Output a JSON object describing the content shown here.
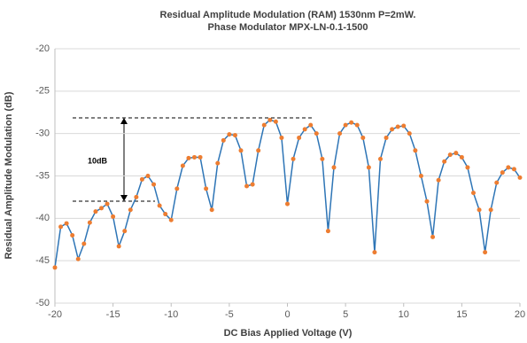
{
  "chart_data": {
    "type": "line",
    "title": "Residual Amplitude Modulation (RAM) 1530nm P=2mW.",
    "subtitle": "Phase Modulator MPX-LN-0.1-1500",
    "x_label": "DC Bias Applied Voltage (V)",
    "y_label": "Residual Amplitude Modulation (dB)",
    "annotation": "10dB",
    "x": [
      -20,
      -19.5,
      -19,
      -18.5,
      -18,
      -17.5,
      -17,
      -16.5,
      -16,
      -15.5,
      -15,
      -14.5,
      -14,
      -13.5,
      -13,
      -12.5,
      -12,
      -11.5,
      -11,
      -10.5,
      -10,
      -9.5,
      -9,
      -8.5,
      -8,
      -7.5,
      -7,
      -6.5,
      -6,
      -5.5,
      -5,
      -4.5,
      -4,
      -3.5,
      -3,
      -2.5,
      -2,
      -1.5,
      -1,
      -0.5,
      0,
      0.5,
      1,
      1.5,
      2,
      2.5,
      3,
      3.5,
      4,
      4.5,
      5,
      5.5,
      6,
      6.5,
      7,
      7.5,
      8,
      8.5,
      9,
      9.5,
      10,
      10.5,
      11,
      11.5,
      12,
      12.5,
      13,
      13.5,
      14,
      14.5,
      15,
      15.5,
      16,
      16.5,
      17,
      17.5,
      18,
      18.5,
      19,
      19.5,
      20
    ],
    "series": [
      {
        "name": "RAM",
        "color": "#2e75b6",
        "marker_color": "#ed7d31",
        "values": [
          -45.8,
          -41,
          -40.6,
          -42,
          -44.8,
          -43,
          -40.5,
          -39.2,
          -38.8,
          -38.3,
          -39.8,
          -43.3,
          -41.5,
          -39,
          -37.5,
          -35.4,
          -35,
          -36,
          -38.5,
          -39.5,
          -40.2,
          -36.5,
          -33.8,
          -32.9,
          -32.8,
          -32.8,
          -36.5,
          -39,
          -33.5,
          -30.8,
          -30.1,
          -30.2,
          -32,
          -36.2,
          -36,
          -32,
          -29,
          -28.4,
          -28.6,
          -30.5,
          -38.3,
          -33,
          -30.5,
          -29.5,
          -29,
          -30,
          -33,
          -41.5,
          -34,
          -30,
          -29,
          -28.7,
          -29,
          -30.5,
          -34,
          -44,
          -33,
          -30.5,
          -29.5,
          -29.2,
          -29.1,
          -30,
          -32,
          -35,
          -38,
          -42.2,
          -35.5,
          -33.3,
          -32.5,
          -32.3,
          -32.8,
          -34,
          -37,
          -39,
          -44,
          -39,
          -35.8,
          -34.6,
          -34,
          -34.2,
          -35.2
        ]
      }
    ],
    "xlim": [
      -20,
      20
    ],
    "xticks": [
      -20,
      -15,
      -10,
      -5,
      0,
      5,
      10,
      15,
      20
    ],
    "ylim": [
      -50,
      -20
    ],
    "yticks": [
      -50,
      -45,
      -40,
      -35,
      -30,
      -25,
      -20
    ],
    "grid": true
  }
}
